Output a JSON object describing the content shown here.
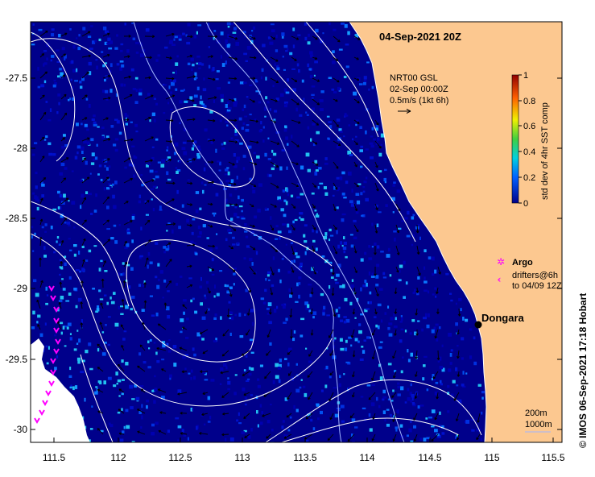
{
  "title": "04-Sep-2021 20Z",
  "axes": {
    "x_ticks": [
      "111.5",
      "112",
      "112.5",
      "113",
      "113.5",
      "114",
      "114.5",
      "115",
      "115.5"
    ],
    "y_ticks": [
      "-27.5",
      "-28",
      "-28.5",
      "-29",
      "-29.5",
      "-30"
    ]
  },
  "current_info": {
    "line1": "NRT00 GSL",
    "line2": "02-Sep 00:00Z",
    "line3": "0.5m/s (1kt 6h)"
  },
  "colorbar": {
    "label": "std dev of 4hr SST comp",
    "ticks": [
      "1",
      "0.8",
      "0.6",
      "0.4",
      "0.2",
      "0"
    ]
  },
  "legend": {
    "argo_label": "Argo",
    "drifters_line1": "drifters@6h",
    "drifters_line2": "to 04/09 12Z"
  },
  "place": {
    "name": "Dongara"
  },
  "contours": {
    "line1": "200m",
    "line2": "1000m"
  },
  "credit": "© IMOS 06-Sep-2021 17:18 Hobart",
  "colors": {
    "ocean": "#00008b",
    "land": "#fcc890",
    "drifter": "#ff00ff",
    "bathy_line": "#a0b4ff",
    "ssh_line": "#ffffff"
  }
}
